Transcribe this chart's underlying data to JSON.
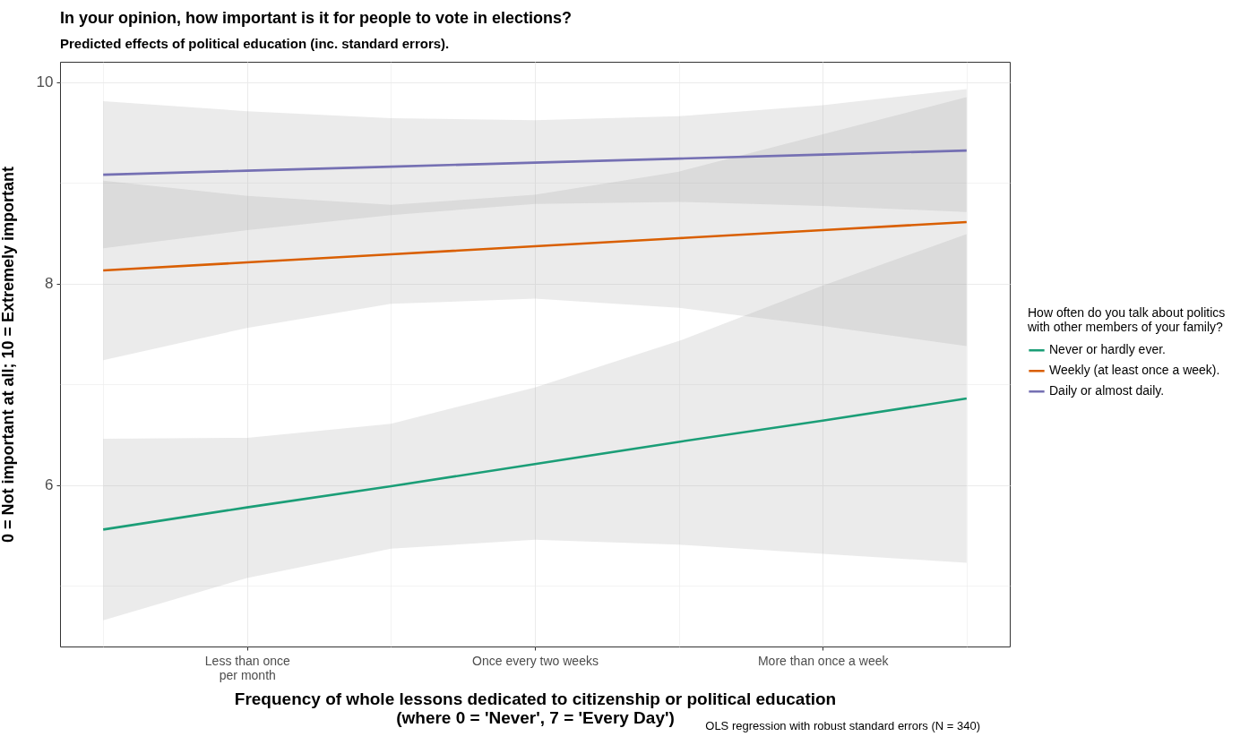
{
  "chart_data": {
    "type": "line",
    "title": "In your opinion, how important is it for people to vote in elections?",
    "subtitle": "Predicted effects of political education (inc. standard errors).",
    "xlabel": "Frequency of whole lessons dedicated to citizenship or political education\n(where 0 = 'Never', 7 = 'Every Day')",
    "ylabel": "0 = Not important at all; 10 = Extremely important",
    "legend_title": "How often do you talk about politics\nwith other members of your family?",
    "annotations": [
      "OLS regression with robust standard errors (N = 340)"
    ],
    "categories": [
      null,
      "Less than once\nper month",
      null,
      "Once every two weeks",
      null,
      "More than once a week",
      null
    ],
    "series": [
      {
        "name": "Never or hardly ever.",
        "color": "#1b9e77",
        "values": [
          5.56,
          5.78,
          5.99,
          6.21,
          6.43,
          6.64,
          6.86
        ],
        "lower": [
          4.66,
          5.08,
          5.37,
          5.46,
          5.41,
          5.32,
          5.23
        ],
        "upper": [
          6.46,
          6.47,
          6.61,
          6.97,
          7.43,
          7.98,
          8.49
        ]
      },
      {
        "name": "Weekly (at least once a week).",
        "color": "#d95f02",
        "values": [
          8.13,
          8.21,
          8.29,
          8.37,
          8.45,
          8.53,
          8.61
        ],
        "lower": [
          7.24,
          7.56,
          7.8,
          7.85,
          7.76,
          7.58,
          7.38
        ],
        "upper": [
          9.02,
          8.87,
          8.78,
          8.88,
          9.11,
          9.48,
          9.85
        ]
      },
      {
        "name": "Daily or almost daily.",
        "color": "#7570b3",
        "values": [
          9.08,
          9.12,
          9.16,
          9.2,
          9.24,
          9.28,
          9.32
        ],
        "lower": [
          8.35,
          8.53,
          8.68,
          8.79,
          8.81,
          8.77,
          8.71
        ],
        "upper": [
          9.81,
          9.71,
          9.64,
          9.62,
          9.66,
          9.77,
          9.93
        ]
      }
    ],
    "ylim": [
      4.4,
      10.2
    ],
    "yticks": [
      {
        "value": 5,
        "label": null
      },
      6,
      {
        "value": 7,
        "label": null
      },
      8,
      {
        "value": 9,
        "label": null
      },
      10
    ],
    "grid": true,
    "legend": "right"
  }
}
